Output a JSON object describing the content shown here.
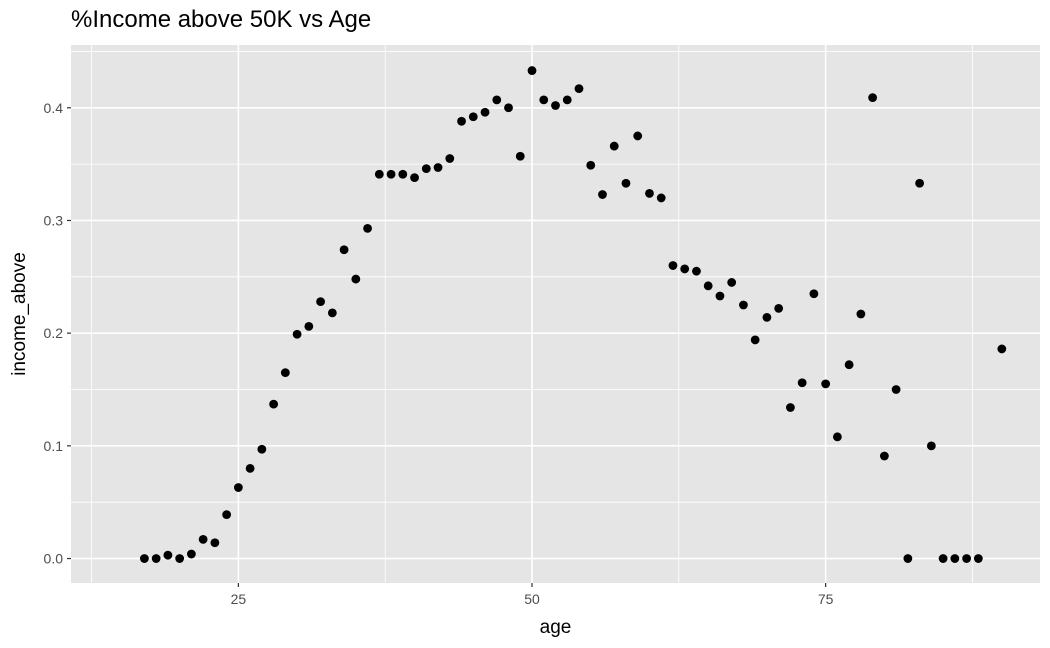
{
  "chart_data": {
    "type": "scatter",
    "title": "%Income above 50K vs Age",
    "xlabel": "age",
    "ylabel": "income_above",
    "xlim": [
      10.75,
      93.25
    ],
    "ylim": [
      -0.0217,
      0.4557
    ],
    "x_ticks": [
      25,
      50,
      75
    ],
    "x_tick_labels": [
      "25",
      "50",
      "75"
    ],
    "y_ticks": [
      0.0,
      0.1,
      0.2,
      0.3,
      0.4
    ],
    "y_tick_labels": [
      "0.0",
      "0.1",
      "0.2",
      "0.3",
      "0.4"
    ],
    "grid": true,
    "legend": "none",
    "point_color": "#000000",
    "panel_background": "#e5e5e5",
    "grid_color": "#ffffff",
    "x": [
      17,
      18,
      19,
      20,
      21,
      22,
      23,
      24,
      25,
      26,
      27,
      28,
      29,
      30,
      31,
      32,
      33,
      34,
      35,
      36,
      37,
      38,
      39,
      40,
      41,
      42,
      43,
      44,
      45,
      46,
      47,
      48,
      49,
      50,
      51,
      52,
      53,
      54,
      55,
      56,
      57,
      58,
      59,
      60,
      61,
      62,
      63,
      64,
      65,
      66,
      67,
      68,
      69,
      70,
      71,
      72,
      73,
      74,
      75,
      76,
      77,
      78,
      79,
      80,
      81,
      82,
      83,
      84,
      85,
      86,
      87,
      88,
      90
    ],
    "y": [
      0.0,
      0.0,
      0.003,
      0.0,
      0.004,
      0.017,
      0.014,
      0.039,
      0.063,
      0.08,
      0.097,
      0.137,
      0.165,
      0.199,
      0.206,
      0.228,
      0.218,
      0.274,
      0.248,
      0.293,
      0.341,
      0.341,
      0.341,
      0.338,
      0.346,
      0.347,
      0.355,
      0.388,
      0.392,
      0.396,
      0.407,
      0.4,
      0.357,
      0.433,
      0.407,
      0.402,
      0.407,
      0.417,
      0.349,
      0.323,
      0.366,
      0.333,
      0.375,
      0.324,
      0.32,
      0.26,
      0.257,
      0.255,
      0.242,
      0.233,
      0.245,
      0.225,
      0.194,
      0.214,
      0.222,
      0.134,
      0.156,
      0.235,
      0.155,
      0.108,
      0.172,
      0.217,
      0.409,
      0.091,
      0.15,
      0.0,
      0.333,
      0.1,
      0.0,
      0.0,
      0.0,
      0.0,
      0.186
    ]
  }
}
